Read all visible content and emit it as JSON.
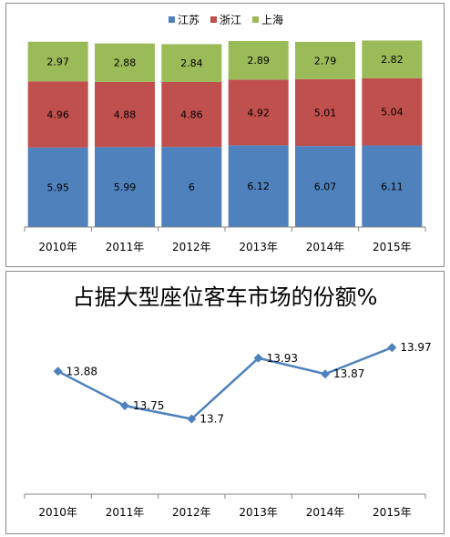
{
  "chart_data": [
    {
      "type": "bar",
      "stacked": true,
      "categories": [
        "2010年",
        "2011年",
        "2012年",
        "2013年",
        "2014年",
        "2015年"
      ],
      "series": [
        {
          "name": "江苏",
          "color": "#4f81bd",
          "values": [
            5.95,
            5.99,
            6,
            6.12,
            6.07,
            6.11
          ],
          "labels": [
            "5.95",
            "5.99",
            "6",
            "6.12",
            "6.07",
            "6.11"
          ]
        },
        {
          "name": "浙江",
          "color": "#c0504d",
          "values": [
            4.96,
            4.88,
            4.86,
            4.92,
            5.01,
            5.04
          ],
          "labels": [
            "4.96",
            "4.88",
            "4.86",
            "4.92",
            "5.01",
            "5.04"
          ]
        },
        {
          "name": "上海",
          "color": "#9bbb59",
          "values": [
            2.97,
            2.88,
            2.84,
            2.89,
            2.79,
            2.82
          ],
          "labels": [
            "2.97",
            "2.88",
            "2.84",
            "2.89",
            "2.79",
            "2.82"
          ]
        }
      ],
      "legend_position": "top",
      "grid": false,
      "ylim": [
        0,
        14
      ]
    },
    {
      "type": "line",
      "title": "占据大型座位客车市场的份额%",
      "categories": [
        "2010年",
        "2011年",
        "2012年",
        "2013年",
        "2014年",
        "2015年"
      ],
      "values": [
        13.88,
        13.75,
        13.7,
        13.93,
        13.87,
        13.97
      ],
      "labels": [
        "13.88",
        "13.75",
        "13.7",
        "13.93",
        "13.87",
        "13.97"
      ],
      "color": "#4f81bd",
      "marker": "diamond",
      "grid": false,
      "ylim": [
        13.55,
        14.05
      ]
    }
  ]
}
